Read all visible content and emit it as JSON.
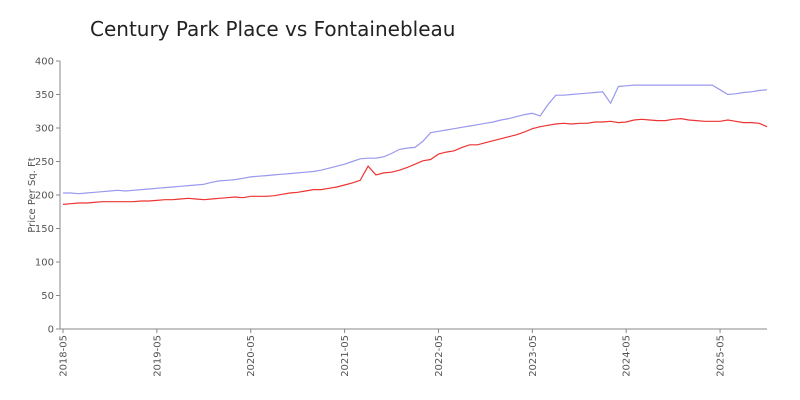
{
  "chart_data": {
    "type": "line",
    "title": "Century Park Place vs Fontainebleau",
    "y_label": "Price Per Sq. Ft",
    "x": [
      "2018-05",
      "2018-06",
      "2018-07",
      "2018-08",
      "2018-09",
      "2018-10",
      "2018-11",
      "2018-12",
      "2019-01",
      "2019-02",
      "2019-03",
      "2019-04",
      "2019-05",
      "2019-06",
      "2019-07",
      "2019-08",
      "2019-09",
      "2019-10",
      "2019-11",
      "2019-12",
      "2020-01",
      "2020-02",
      "2020-03",
      "2020-04",
      "2020-05",
      "2020-06",
      "2020-07",
      "2020-08",
      "2020-09",
      "2020-10",
      "2020-11",
      "2020-12",
      "2021-01",
      "2021-02",
      "2021-03",
      "2021-04",
      "2021-05",
      "2021-06",
      "2021-07",
      "2021-08",
      "2021-09",
      "2021-10",
      "2021-11",
      "2021-12",
      "2022-01",
      "2022-02",
      "2022-03",
      "2022-04",
      "2022-05",
      "2022-06",
      "2022-07",
      "2022-08",
      "2022-09",
      "2022-10",
      "2022-11",
      "2022-12",
      "2023-01",
      "2023-02",
      "2023-03",
      "2023-04",
      "2023-05",
      "2023-06",
      "2023-07",
      "2023-08",
      "2023-09",
      "2023-10",
      "2023-11",
      "2023-12",
      "2024-01",
      "2024-02",
      "2024-03",
      "2024-04",
      "2024-05",
      "2024-06",
      "2024-07",
      "2024-08",
      "2024-09",
      "2024-10",
      "2024-11",
      "2024-12",
      "2025-01",
      "2025-02",
      "2025-03",
      "2025-04",
      "2025-05",
      "2025-06",
      "2025-07",
      "2025-08",
      "2025-09",
      "2025-10",
      "2025-11"
    ],
    "series": [
      {
        "color": "#9999ee",
        "values": [
          203,
          203,
          202,
          203,
          204,
          205,
          206,
          207,
          206,
          207,
          208,
          209,
          210,
          211,
          212,
          213,
          214,
          215,
          216,
          219,
          221,
          222,
          223,
          225,
          227,
          228,
          229,
          230,
          231,
          232,
          233,
          234,
          235,
          237,
          240,
          243,
          246,
          250,
          254,
          255,
          255,
          257,
          262,
          268,
          270,
          271,
          280,
          293,
          295,
          297,
          299,
          301,
          303,
          305,
          307,
          309,
          312,
          314,
          317,
          320,
          322,
          318,
          335,
          349,
          349,
          350,
          351,
          352,
          353,
          354,
          337,
          362,
          363,
          364,
          364,
          364,
          364,
          364,
          364,
          364,
          364,
          364,
          364,
          364,
          357,
          350,
          351,
          353,
          354,
          356,
          357
        ]
      },
      {
        "color": "#ee3333",
        "values": [
          186,
          187,
          188,
          188,
          189,
          190,
          190,
          190,
          190,
          190,
          191,
          191,
          192,
          193,
          193,
          194,
          195,
          194,
          193,
          194,
          195,
          196,
          197,
          196,
          198,
          198,
          198,
          199,
          201,
          203,
          204,
          206,
          208,
          208,
          210,
          212,
          215,
          218,
          222,
          243,
          230,
          233,
          234,
          237,
          241,
          246,
          251,
          253,
          261,
          264,
          266,
          271,
          275,
          275,
          278,
          281,
          284,
          287,
          290,
          294,
          299,
          302,
          304,
          306,
          307,
          306,
          307,
          307,
          309,
          309,
          310,
          308,
          309,
          312,
          313,
          312,
          311,
          311,
          313,
          314,
          312,
          311,
          310,
          310,
          310,
          312,
          310,
          308,
          308,
          307,
          302
        ]
      }
    ],
    "xticks": [
      "2018-05",
      "2019-05",
      "2020-05",
      "2021-05",
      "2022-05",
      "2023-05",
      "2024-05",
      "2025-05"
    ],
    "ylim": [
      0,
      400
    ],
    "yticks": [
      0,
      50,
      100,
      150,
      200,
      250,
      300,
      350,
      400
    ],
    "grid": false
  }
}
